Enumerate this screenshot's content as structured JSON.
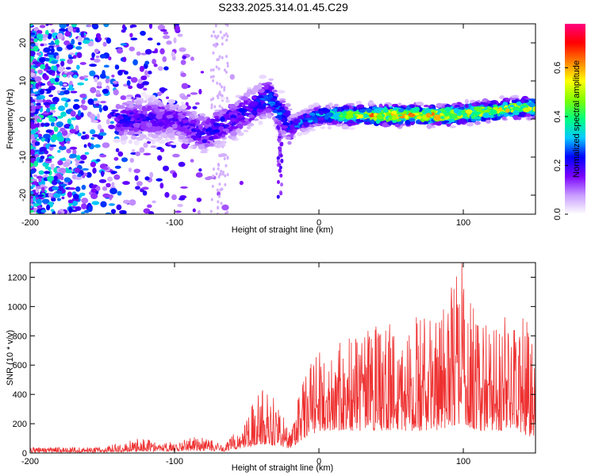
{
  "title": "S233.2025.314.01.45.C29",
  "chart_data": [
    {
      "type": "heatmap",
      "xlabel": "Height of straight line (km)",
      "ylabel": "Frequency (Hz)",
      "xlim": [
        -200,
        150
      ],
      "ylim": [
        -25,
        25
      ],
      "x_ticks": [
        "-200",
        "-100",
        "0",
        "100"
      ],
      "y_ticks": [
        "-20",
        "-10",
        "0",
        "10",
        "20"
      ],
      "colorbar": {
        "label": "Normalized spectral amplitude",
        "range": [
          0,
          0.78
        ],
        "ticks": [
          "0.0",
          "0.2",
          "0.4",
          "0.6"
        ],
        "colors": [
          "#ffffff",
          "#c89bff",
          "#7a00ff",
          "#0000ff",
          "#00c8ff",
          "#00ff80",
          "#80ff00",
          "#ffff00",
          "#ff8000",
          "#ff0000",
          "#ff0080"
        ]
      },
      "description_points": [
        {
          "x": -130,
          "freq": 0,
          "amp": 0.25
        },
        {
          "x": -100,
          "freq": 0,
          "amp": 0.2
        },
        {
          "x": -80,
          "freq": -4,
          "amp": 0.25
        },
        {
          "x": -50,
          "freq": 2,
          "amp": 0.25
        },
        {
          "x": -35,
          "freq": 6,
          "amp": 0.3
        },
        {
          "x": -20,
          "freq": -2,
          "amp": 0.3
        },
        {
          "x": 0,
          "freq": 1,
          "amp": 0.35
        },
        {
          "x": 40,
          "freq": 1,
          "amp": 0.7
        },
        {
          "x": 90,
          "freq": 1,
          "amp": 0.65
        },
        {
          "x": 140,
          "freq": 3,
          "amp": 0.6
        }
      ]
    },
    {
      "type": "line",
      "xlabel": "Height of straight line (km)",
      "ylabel": "SNR (10 * v/v)",
      "xlim": [
        -200,
        150
      ],
      "ylim": [
        0,
        1300
      ],
      "x_ticks": [
        "-200",
        "-100",
        "0",
        "100"
      ],
      "y_ticks": [
        "0",
        "200",
        "400",
        "600",
        "800",
        "1000",
        "1200"
      ],
      "color": "#ee3030",
      "envelope": [
        {
          "x": -200,
          "low": 5,
          "high": 40
        },
        {
          "x": -150,
          "low": 5,
          "high": 40
        },
        {
          "x": -120,
          "low": 10,
          "high": 110
        },
        {
          "x": -110,
          "low": 10,
          "high": 60
        },
        {
          "x": -85,
          "low": 15,
          "high": 120
        },
        {
          "x": -65,
          "low": 10,
          "high": 60
        },
        {
          "x": -55,
          "low": 30,
          "high": 180
        },
        {
          "x": -40,
          "low": 60,
          "high": 450
        },
        {
          "x": -30,
          "low": 50,
          "high": 400
        },
        {
          "x": -20,
          "low": 30,
          "high": 150
        },
        {
          "x": -10,
          "low": 100,
          "high": 550
        },
        {
          "x": 0,
          "low": 150,
          "high": 700
        },
        {
          "x": 20,
          "low": 150,
          "high": 800
        },
        {
          "x": 50,
          "low": 150,
          "high": 900
        },
        {
          "x": 80,
          "low": 150,
          "high": 950
        },
        {
          "x": 99,
          "low": 200,
          "high": 1300
        },
        {
          "x": 110,
          "low": 150,
          "high": 900
        },
        {
          "x": 135,
          "low": 150,
          "high": 1000
        },
        {
          "x": 150,
          "low": 100,
          "high": 850
        }
      ]
    }
  ]
}
